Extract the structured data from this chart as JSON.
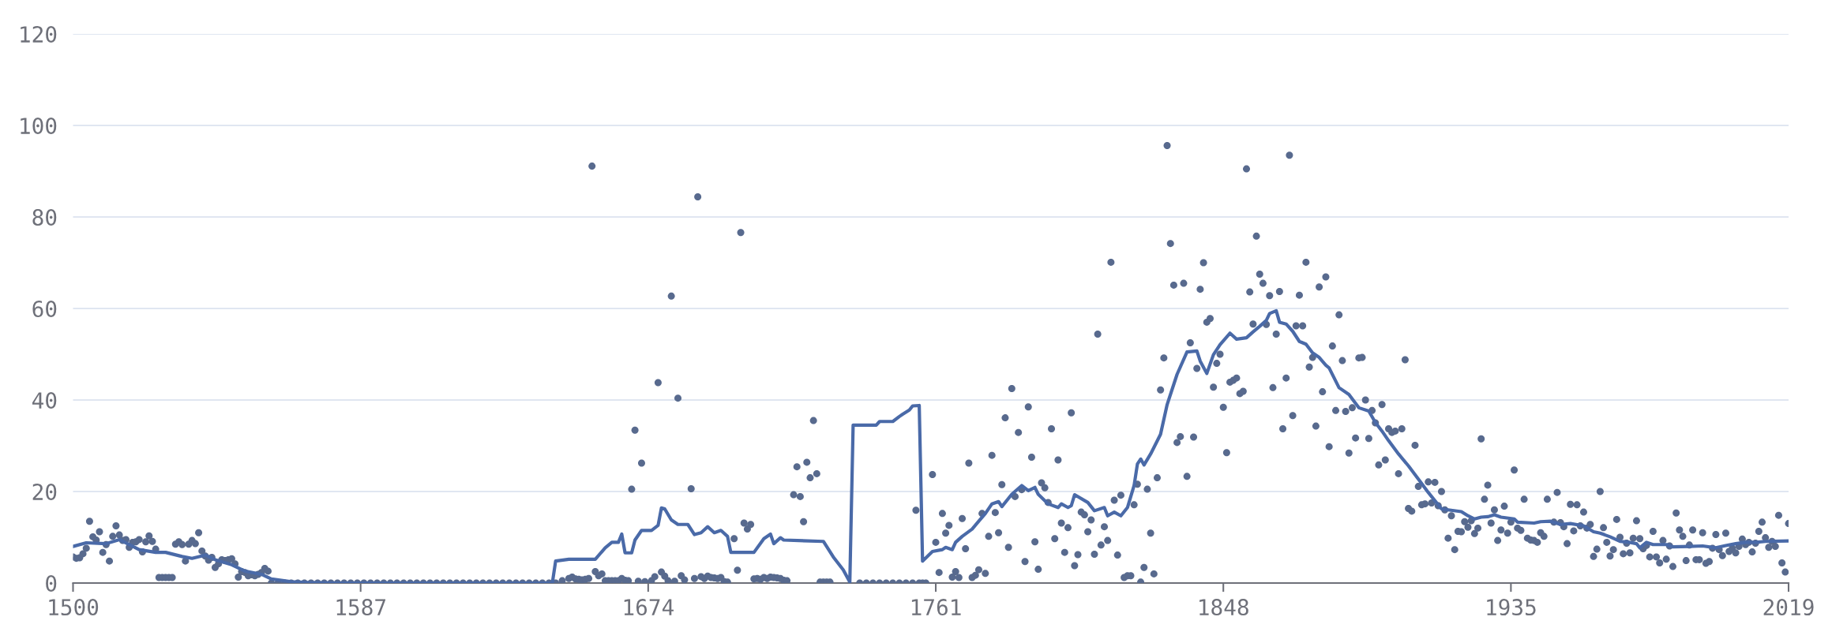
{
  "chart_data": {
    "type": "scatter",
    "xlim": [
      1500,
      2019
    ],
    "xticks": [
      1500,
      1587,
      1674,
      1761,
      1848,
      1935,
      2019
    ],
    "ylim": [
      0,
      120
    ],
    "yticks": [
      0,
      20,
      40,
      60,
      80,
      100,
      120
    ],
    "grid": "y",
    "marker": "circle",
    "series": [
      {
        "color": "#586a8e",
        "x": [
          1500,
          1501,
          1502,
          1503,
          1504,
          1505,
          1506,
          1507,
          1508,
          1509,
          1510,
          1511,
          1512,
          1513,
          1514,
          1515,
          1516,
          1517,
          1518,
          1519,
          1520,
          1521,
          1522,
          1523,
          1524,
          1525,
          1526,
          1527,
          1528,
          1529,
          1530,
          1531,
          1532,
          1533,
          1534,
          1535,
          1536,
          1537,
          1538,
          1539,
          1540,
          1541,
          1542,
          1543,
          1544,
          1545,
          1546,
          1547,
          1548,
          1549,
          1550,
          1551,
          1552,
          1553,
          1554,
          1555,
          1556,
          1557,
          1558,
          1559,
          1560,
          1562,
          1564,
          1566,
          1568,
          1570,
          1572,
          1574,
          1576,
          1578,
          1580,
          1582,
          1584,
          1586,
          1588,
          1590,
          1592,
          1594,
          1596,
          1598,
          1600,
          1602,
          1604,
          1606,
          1608,
          1610,
          1612,
          1614,
          1616,
          1618,
          1620,
          1622,
          1624,
          1626,
          1628,
          1630,
          1632,
          1634,
          1636,
          1638,
          1640,
          1642,
          1644,
          1646,
          1648,
          1650,
          1651,
          1652,
          1653,
          1654,
          1655,
          1656,
          1657,
          1658,
          1659,
          1660,
          1661,
          1662,
          1663,
          1664,
          1665,
          1666,
          1667,
          1668,
          1669,
          1670,
          1671,
          1672,
          1673,
          1675,
          1676,
          1677,
          1678,
          1679,
          1680,
          1681,
          1682,
          1683,
          1684,
          1685,
          1687,
          1688,
          1689,
          1690,
          1691,
          1692,
          1693,
          1694,
          1695,
          1696,
          1697,
          1698,
          1700,
          1701,
          1702,
          1703,
          1704,
          1705,
          1706,
          1707,
          1708,
          1709,
          1710,
          1711,
          1712,
          1713,
          1714,
          1715,
          1716,
          1718,
          1719,
          1720,
          1721,
          1722,
          1723,
          1724,
          1725,
          1726,
          1727,
          1728,
          1729,
          1738,
          1740,
          1742,
          1744,
          1746,
          1748,
          1750,
          1752,
          1754,
          1755,
          1756,
          1757,
          1758,
          1760,
          1761,
          1762,
          1763,
          1764,
          1765,
          1766,
          1767,
          1768,
          1769,
          1770,
          1771,
          1772,
          1773,
          1774,
          1775,
          1776,
          1777,
          1778,
          1779,
          1780,
          1781,
          1782,
          1783,
          1784,
          1785,
          1786,
          1787,
          1788,
          1789,
          1790,
          1791,
          1792,
          1793,
          1794,
          1795,
          1796,
          1797,
          1798,
          1799,
          1800,
          1801,
          1802,
          1803,
          1804,
          1805,
          1806,
          1807,
          1808,
          1809,
          1810,
          1811,
          1812,
          1813,
          1814,
          1815,
          1816,
          1817,
          1818,
          1819,
          1820,
          1821,
          1822,
          1823,
          1824,
          1825,
          1826,
          1827,
          1828,
          1829,
          1830,
          1831,
          1832,
          1833,
          1834,
          1835,
          1836,
          1837,
          1838,
          1839,
          1840,
          1841,
          1842,
          1843,
          1844,
          1845,
          1846,
          1847,
          1848,
          1849,
          1850,
          1851,
          1852,
          1853,
          1854,
          1855,
          1856,
          1857,
          1858,
          1859,
          1860,
          1861,
          1862,
          1863,
          1864,
          1865,
          1866,
          1867,
          1868,
          1869,
          1870,
          1871,
          1872,
          1873,
          1874,
          1875,
          1876,
          1877,
          1878,
          1879,
          1880,
          1881,
          1882,
          1883,
          1884,
          1885,
          1886,
          1887,
          1888,
          1889,
          1890,
          1891,
          1892,
          1893,
          1894,
          1895,
          1896,
          1897,
          1898,
          1899,
          1900,
          1901,
          1902,
          1903,
          1904,
          1905,
          1906,
          1907,
          1908,
          1909,
          1910,
          1911,
          1912,
          1913,
          1914,
          1915,
          1916,
          1917,
          1918,
          1919,
          1920,
          1921,
          1922,
          1923,
          1924,
          1925,
          1926,
          1927,
          1928,
          1929,
          1930,
          1931,
          1932,
          1933,
          1934,
          1935,
          1936,
          1937,
          1938,
          1939,
          1940,
          1941,
          1942,
          1943,
          1944,
          1945,
          1946,
          1948,
          1949,
          1950,
          1951,
          1952,
          1953,
          1954,
          1955,
          1956,
          1957,
          1958,
          1959,
          1960,
          1961,
          1962,
          1963,
          1964,
          1965,
          1966,
          1967,
          1968,
          1969,
          1970,
          1971,
          1972,
          1973,
          1974,
          1975,
          1976,
          1977,
          1978,
          1979,
          1980,
          1981,
          1982,
          1983,
          1984,
          1985,
          1986,
          1987,
          1988,
          1989,
          1990,
          1991,
          1992,
          1993,
          1994,
          1995,
          1996,
          1997,
          1998,
          1999,
          2000,
          2001,
          2002,
          2003,
          2004,
          2005,
          2006,
          2007,
          2008,
          2009,
          2010,
          2011,
          2012,
          2013,
          2014,
          2015,
          2016,
          2017,
          2018,
          2019
        ],
        "values": [
          5.7,
          5.4,
          5.5,
          6.4,
          7.6,
          13.5,
          10.1,
          9.4,
          11.2,
          6.7,
          8.4,
          4.8,
          10.2,
          12.5,
          10.5,
          9.3,
          9.5,
          7.8,
          8.9,
          9.0,
          9.5,
          6.8,
          9.0,
          10.3,
          9.1,
          7.4,
          1.2,
          1.2,
          1.2,
          1.2,
          1.2,
          8.5,
          9.0,
          8.4,
          4.8,
          8.5,
          9.3,
          8.6,
          11.0,
          7.0,
          5.9,
          5.0,
          5.6,
          3.4,
          4.2,
          5.1,
          4.9,
          5.1,
          5.3,
          4.2,
          1.3,
          2.5,
          2.3,
          1.6,
          1.8,
          1.6,
          1.9,
          2.3,
          3.2,
          2.6,
          0,
          0,
          0,
          0,
          0,
          0,
          0,
          0,
          0,
          0,
          0,
          0,
          0,
          0,
          0,
          0,
          0,
          0,
          0,
          0,
          0,
          0,
          0,
          0,
          0,
          0,
          0,
          0,
          0,
          0,
          0,
          0,
          0,
          0,
          0,
          0,
          0,
          0,
          0,
          0,
          0,
          0,
          0,
          0,
          0.5,
          1.0,
          1.3,
          0.9,
          0.8,
          0.7,
          0.8,
          1.0,
          91.1,
          2.5,
          1.6,
          2.0,
          0.5,
          0.5,
          0.5,
          0.5,
          0.5,
          1.0,
          0.6,
          0.5,
          20.5,
          33.4,
          0.4,
          26.2,
          0.3,
          0.5,
          1.4,
          43.8,
          2.4,
          1.5,
          0.5,
          62.7,
          0.4,
          40.4,
          1.6,
          0.7,
          20.6,
          1.0,
          84.4,
          1.4,
          1.0,
          1.5,
          1.2,
          1.1,
          1.0,
          1.2,
          0.3,
          0.2,
          9.7,
          2.8,
          76.6,
          13.1,
          11.8,
          12.8,
          0.9,
          1.0,
          0.8,
          1.2,
          1.0,
          1.3,
          1.2,
          1.1,
          1.0,
          0.6,
          0.5,
          19.3,
          25.4,
          18.9,
          13.4,
          26.4,
          23.0,
          35.5,
          23.9,
          0.2,
          0.2,
          0.2,
          0.2,
          0,
          0,
          0,
          0,
          0,
          0,
          0,
          0,
          0,
          15.9,
          0,
          0,
          0,
          23.7,
          8.9,
          2.3,
          15.2,
          10.9,
          12.6,
          1.3,
          2.5,
          1.2,
          14.1,
          7.5,
          26.2,
          1.2,
          1.7,
          2.9,
          15.2,
          2.1,
          10.2,
          27.9,
          15.4,
          11.0,
          21.5,
          36.1,
          7.8,
          42.5,
          18.9,
          32.9,
          20.4,
          4.7,
          38.5,
          27.5,
          9.0,
          3.0,
          21.9,
          20.8,
          17.6,
          33.7,
          9.7,
          26.9,
          13.1,
          6.7,
          12.1,
          37.2,
          3.8,
          6.2,
          15.5,
          14.9,
          11.2,
          13.8,
          6.3,
          54.4,
          8.3,
          12.3,
          9.3,
          70.1,
          18.1,
          6.1,
          19.2,
          1.2,
          1.6,
          1.6,
          17.1,
          21.6,
          0.2,
          3.4,
          20.5,
          10.9,
          2.0,
          23.0,
          42.2,
          49.2,
          95.6,
          74.2,
          65.1,
          30.7,
          32.0,
          65.5,
          23.3,
          52.5,
          31.9,
          46.9,
          64.2,
          70.0,
          57.0,
          57.8,
          42.8,
          48.0,
          50.0,
          38.4,
          28.5,
          43.9,
          44.3,
          44.8,
          41.4,
          41.9,
          90.5,
          63.6,
          56.6,
          75.8,
          67.5,
          65.5,
          56.5,
          62.8,
          42.7,
          54.4,
          63.7,
          33.7,
          44.8,
          93.5,
          36.6,
          56.2,
          62.9,
          56.2,
          70.1,
          47.2,
          49.3,
          34.3,
          64.7,
          41.8,
          66.9,
          29.8,
          51.8,
          37.7,
          58.6,
          48.6,
          37.5,
          28.4,
          38.3,
          31.7,
          49.2,
          49.3,
          40.0,
          31.6,
          37.7,
          35.0,
          25.8,
          39.0,
          26.9,
          33.7,
          32.9,
          33.2,
          23.9,
          33.7,
          48.8,
          16.3,
          15.7,
          30.1,
          21.1,
          17.1,
          17.3,
          22.1,
          17.5,
          22.0,
          16.9,
          20.0,
          16.0,
          9.8,
          14.7,
          7.3,
          11.3,
          11.2,
          13.4,
          12.2,
          13.6,
          10.8,
          12.0,
          31.5,
          18.3,
          21.4,
          13.1,
          16.0,
          9.3,
          11.6,
          16.8,
          10.9,
          13.3,
          24.7,
          12.0,
          11.5,
          18.3,
          9.8,
          9.4,
          9.3,
          8.9,
          11.0,
          10.2,
          18.3,
          13.3,
          19.8,
          13.2,
          12.3,
          8.6,
          17.2,
          11.4,
          17.1,
          12.5,
          15.5,
          12.0,
          12.8,
          5.8,
          7.4,
          20.0,
          12.1,
          8.9,
          5.9,
          7.3,
          13.9,
          10.0,
          6.4,
          8.7,
          6.6,
          9.8,
          13.6,
          9.7,
          7.5,
          8.2,
          5.7,
          11.3,
          5.7,
          4.4,
          9.3,
          5.2,
          8.1,
          3.6,
          15.3,
          11.6,
          10.2,
          4.9,
          8.3,
          11.6,
          5.1,
          5.1,
          11.0,
          4.3,
          4.7,
          7.6,
          10.6,
          7.3,
          6.0,
          10.9,
          6.9,
          7.6,
          6.6,
          8.0,
          9.6,
          8.4,
          8.9,
          6.8,
          8.7,
          11.3,
          13.3,
          9.9,
          7.8,
          9.1,
          8.0,
          14.8,
          4.4,
          2.4,
          13.0
        ]
      },
      {
        "type": "line",
        "color": "#4a6aa8",
        "marker": "none",
        "line_style": "solid",
        "x": [
          1500,
          1504,
          1510,
          1514,
          1520,
          1525,
          1528,
          1533,
          1536,
          1540,
          1543,
          1548,
          1552,
          1557,
          1560,
          1566,
          1571,
          1580,
          1645,
          1646,
          1650,
          1658,
          1661,
          1663,
          1665,
          1666,
          1667,
          1669,
          1670,
          1672,
          1675,
          1677,
          1678,
          1679,
          1681,
          1683,
          1686,
          1688,
          1690,
          1692,
          1694,
          1696,
          1698,
          1699,
          1706,
          1709,
          1711,
          1712,
          1714,
          1715,
          1727,
          1730,
          1733,
          1735,
          1736,
          1743,
          1744,
          1748,
          1750,
          1751,
          1753,
          1754,
          1756,
          1757,
          1760,
          1763,
          1764,
          1766,
          1767,
          1769,
          1772,
          1774,
          1776,
          1778,
          1780,
          1781,
          1784,
          1787,
          1789,
          1791,
          1792,
          1795,
          1798,
          1799,
          1801,
          1802,
          1803,
          1807,
          1809,
          1812,
          1813,
          1815,
          1817,
          1819,
          1821,
          1822,
          1823,
          1824,
          1826,
          1829,
          1831,
          1834,
          1837,
          1840,
          1841,
          1843,
          1845,
          1847,
          1850,
          1852,
          1855,
          1857,
          1859,
          1861,
          1862,
          1864,
          1865,
          1867,
          1869,
          1871,
          1873,
          1875,
          1877,
          1879,
          1880,
          1883,
          1886,
          1889,
          1892,
          1894,
          1896,
          1898,
          1901,
          1904,
          1907,
          1910,
          1912,
          1914,
          1916,
          1920,
          1922,
          1924,
          1926,
          1928,
          1930,
          1932,
          1936,
          1937,
          1942,
          1944,
          1947,
          1950,
          1953,
          1957,
          1960,
          1962,
          1965,
          1968,
          1970,
          1973,
          1974,
          1976,
          1978,
          1982,
          1984,
          1989,
          1993,
          1997,
          2000,
          2003,
          2006,
          2009,
          2012,
          2019
        ],
        "values": [
          8.0,
          8.8,
          8.6,
          9.5,
          7.3,
          6.7,
          6.7,
          5.8,
          5.4,
          6.1,
          5.1,
          4.0,
          2.6,
          1.9,
          0.9,
          0.3,
          0.1,
          0,
          0,
          4.8,
          5.2,
          5.2,
          7.7,
          8.9,
          8.9,
          10.7,
          6.6,
          6.6,
          9.4,
          11.5,
          11.5,
          12.6,
          16.4,
          16.2,
          13.8,
          12.8,
          12.8,
          10.6,
          11.0,
          12.3,
          11.0,
          11.5,
          10.2,
          6.7,
          6.7,
          9.7,
          10.7,
          8.6,
          9.9,
          9.4,
          9.1,
          5.7,
          2.9,
          0.2,
          34.5,
          34.5,
          35.3,
          35.3,
          36.4,
          36.9,
          37.8,
          38.7,
          38.8,
          4.8,
          6.9,
          7.3,
          7.8,
          7.3,
          8.9,
          10.2,
          11.8,
          13.5,
          15.2,
          17.3,
          17.8,
          16.7,
          19.4,
          21.3,
          20.2,
          20.9,
          19.4,
          17.3,
          16.5,
          17.3,
          16.5,
          16.9,
          19.3,
          17.6,
          15.8,
          16.5,
          14.7,
          15.5,
          14.7,
          16.5,
          21.3,
          26.0,
          27.1,
          25.8,
          28.2,
          32.5,
          39.0,
          45.6,
          50.5,
          50.7,
          48.5,
          45.8,
          49.9,
          52.1,
          54.6,
          53.3,
          53.6,
          54.9,
          56.1,
          57.4,
          58.9,
          59.5,
          57.0,
          56.6,
          55.0,
          52.8,
          52.2,
          50.3,
          49.3,
          47.6,
          47.0,
          42.7,
          41.2,
          38.3,
          37.6,
          35.1,
          33.2,
          31.1,
          28.2,
          25.6,
          22.7,
          19.8,
          18.0,
          16.2,
          16.0,
          15.6,
          14.7,
          14.0,
          14.4,
          14.5,
          14.9,
          14.4,
          14.0,
          13.3,
          13.1,
          13.4,
          13.5,
          12.8,
          13.0,
          12.5,
          11.2,
          10.9,
          10.1,
          9.1,
          9.0,
          8.6,
          7.7,
          8.9,
          8.4,
          8.4,
          7.9,
          8.0,
          8.1,
          7.7,
          8.2,
          8.6,
          8.9,
          8.9,
          9.1,
          9.2
        ]
      }
    ]
  }
}
